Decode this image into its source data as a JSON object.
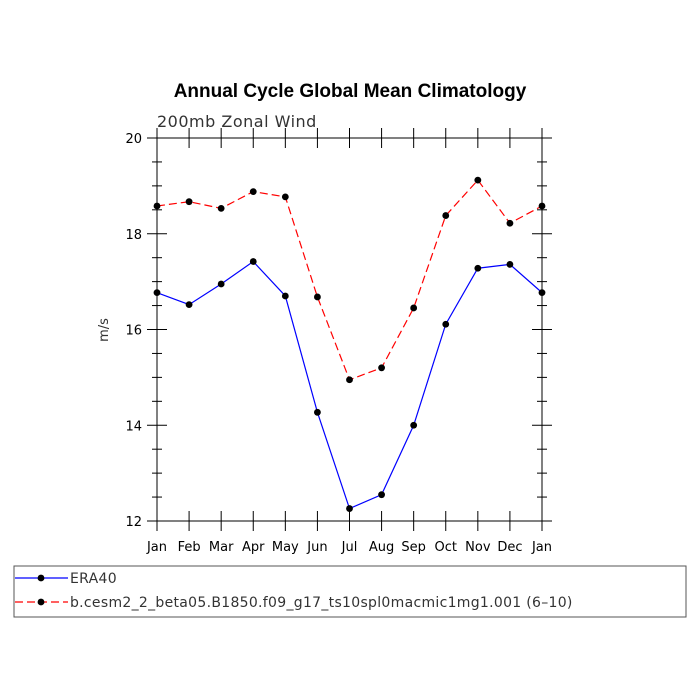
{
  "chart_data": {
    "type": "line",
    "title": "Annual Cycle Global Mean Climatology",
    "subtitle": "200mb Zonal Wind",
    "ylabel": "m/s",
    "xlabel": "",
    "categories": [
      "Jan",
      "Feb",
      "Mar",
      "Apr",
      "May",
      "Jun",
      "Jul",
      "Aug",
      "Sep",
      "Oct",
      "Nov",
      "Dec",
      "Jan"
    ],
    "ylim": [
      12,
      20
    ],
    "yticks": [
      12,
      14,
      16,
      18,
      20
    ],
    "grid": false,
    "legend_position": "bottom",
    "series": [
      {
        "name": "ERA40",
        "color": "#0000ff",
        "dash": "solid",
        "values": [
          16.77,
          16.52,
          16.95,
          17.42,
          16.7,
          14.27,
          12.26,
          12.55,
          14.0,
          16.11,
          17.28,
          17.36,
          16.77
        ]
      },
      {
        "name": "b.cesm2_2_beta05.B1850.f09_g17_ts10spl0macmic1mg1.001 (6–10)",
        "color": "#ff0000",
        "dash": "dashed",
        "values": [
          18.58,
          18.67,
          18.53,
          18.88,
          18.77,
          16.68,
          14.95,
          15.2,
          16.45,
          18.38,
          19.12,
          18.22,
          18.58
        ]
      }
    ]
  }
}
